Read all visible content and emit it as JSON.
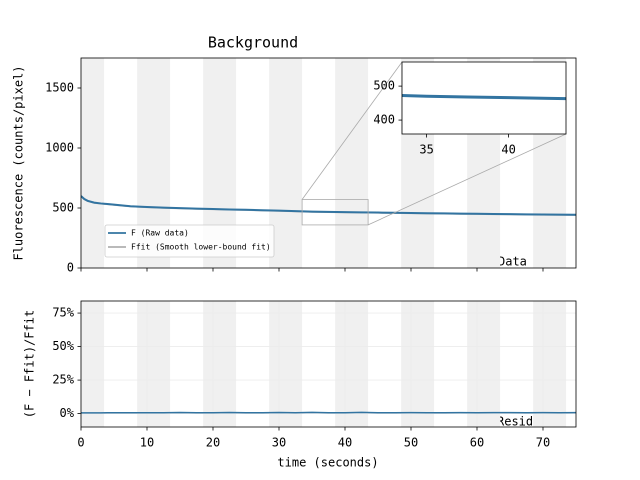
{
  "chart_data": [
    {
      "type": "line",
      "title": "Background",
      "y_label": "Fluorescence (counts/pixel)",
      "annotation": "Data",
      "xlim": [
        0,
        75
      ],
      "ylim": [
        0,
        1750
      ],
      "xticks": [
        0,
        10,
        20,
        30,
        40,
        50,
        60,
        70
      ],
      "yticks": [
        0,
        500,
        1000,
        1500
      ],
      "shaded_spans": [
        [
          -1.5,
          3.5
        ],
        [
          8.5,
          13.5
        ],
        [
          18.5,
          23.5
        ],
        [
          28.5,
          33.5
        ],
        [
          38.5,
          43.5
        ],
        [
          48.5,
          53.5
        ],
        [
          58.5,
          63.5
        ],
        [
          68.5,
          73.5
        ]
      ],
      "shade_color": "#f0f0f0",
      "legend": "lower left",
      "x": [
        0,
        0.5,
        1,
        2,
        3,
        4,
        5,
        7.5,
        10,
        12.5,
        15,
        17.5,
        20,
        22.5,
        25,
        27.5,
        30,
        32.5,
        35,
        37.5,
        40,
        42.5,
        45,
        47.5,
        50,
        52.5,
        55,
        57.5,
        60,
        62.5,
        65,
        67.5,
        70,
        72.5,
        75
      ],
      "series": [
        {
          "name": "Ffit (Smooth lower-bound fit)",
          "color": "#b0b0b0",
          "values": [
            597,
            572,
            557,
            542,
            535,
            530,
            525,
            512,
            505,
            500,
            496,
            492,
            489,
            485,
            482,
            478,
            475,
            471,
            467,
            465,
            463,
            461,
            459,
            457,
            455,
            453,
            452,
            450,
            449,
            447,
            446,
            444,
            443,
            442,
            441
          ]
        },
        {
          "name": "F  (Raw data)",
          "color": "#3274a1",
          "values": [
            600,
            575,
            560,
            545,
            538,
            533,
            528,
            515,
            508,
            503,
            499,
            495,
            492,
            488,
            485,
            481,
            478,
            474,
            470,
            468,
            466,
            464,
            462,
            460,
            458,
            456,
            455,
            453,
            452,
            450,
            449,
            447,
            446,
            445,
            444
          ]
        }
      ]
    },
    {
      "type": "line",
      "y_label": "(F − Ffit)/Ffit",
      "x_label": "time (seconds)",
      "annotation": "Residuals",
      "xlim": [
        0,
        75
      ],
      "ylim": [
        -10,
        84
      ],
      "grid": true,
      "xticks": [
        0,
        10,
        20,
        30,
        40,
        50,
        60,
        70
      ],
      "yticks": [
        {
          "value": 0,
          "label": "0%"
        },
        {
          "value": 25,
          "label": "25%"
        },
        {
          "value": 50,
          "label": "50%"
        },
        {
          "value": 75,
          "label": "75%"
        }
      ],
      "x": [
        0,
        0.5,
        1,
        2,
        3,
        4,
        5,
        7.5,
        10,
        12.5,
        15,
        17.5,
        20,
        22.5,
        25,
        27.5,
        30,
        32.5,
        35,
        37.5,
        40,
        42.5,
        45,
        47.5,
        50,
        52.5,
        55,
        57.5,
        60,
        62.5,
        65,
        67.5,
        70,
        72.5,
        75
      ],
      "series": [
        {
          "name": "Residuals",
          "color": "#3274a1",
          "values": [
            0.5,
            0.5,
            0.5,
            0.5,
            0.5,
            0.6,
            0.6,
            0.6,
            0.6,
            0.6,
            0.8,
            0.6,
            0.6,
            0.8,
            0.6,
            0.6,
            0.8,
            0.6,
            0.9,
            0.6,
            0.6,
            0.9,
            0.6,
            0.6,
            0.7,
            0.6,
            0.6,
            0.7,
            0.6,
            0.7,
            0.7,
            0.6,
            0.7,
            0.6,
            0.7
          ]
        }
      ]
    },
    {
      "type": "inset",
      "xlim": [
        33.5,
        43.5
      ],
      "ylim": [
        359,
        571
      ],
      "xticks": [
        35,
        40
      ],
      "yticks": [
        400,
        500
      ]
    }
  ]
}
